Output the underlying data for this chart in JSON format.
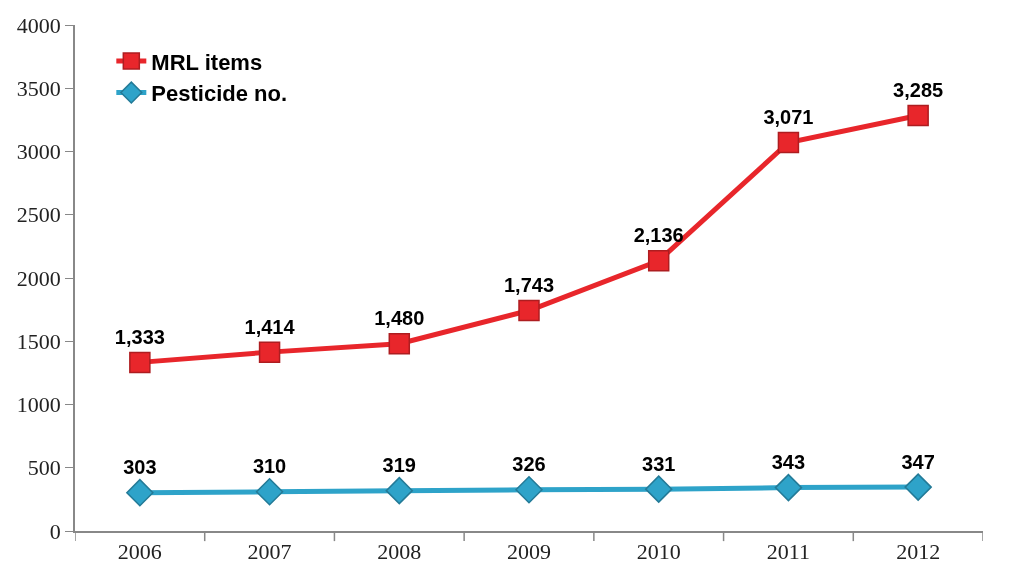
{
  "chart_data": {
    "type": "line",
    "categories": [
      "2006",
      "2007",
      "2008",
      "2009",
      "2010",
      "2011",
      "2012"
    ],
    "series": [
      {
        "name": "MRL items",
        "color": "#e8262b",
        "marker": "square",
        "values": [
          1333,
          1414,
          1480,
          1743,
          2136,
          3071,
          3285
        ],
        "value_labels": [
          "1,333",
          "1,414",
          "1,480",
          "1,743",
          "2,136",
          "3,071",
          "3,285"
        ]
      },
      {
        "name": "Pesticide no.",
        "color": "#2ea3c9",
        "marker": "diamond",
        "values": [
          303,
          310,
          319,
          326,
          331,
          343,
          347
        ],
        "value_labels": [
          "303",
          "310",
          "319",
          "326",
          "331",
          "343",
          "347"
        ]
      }
    ],
    "ylim": [
      0,
      4000
    ],
    "yticks": [
      0,
      500,
      1000,
      1500,
      2000,
      2500,
      3000,
      3500,
      4000
    ],
    "grid": false,
    "legend": "top left",
    "line_style": "solid"
  }
}
